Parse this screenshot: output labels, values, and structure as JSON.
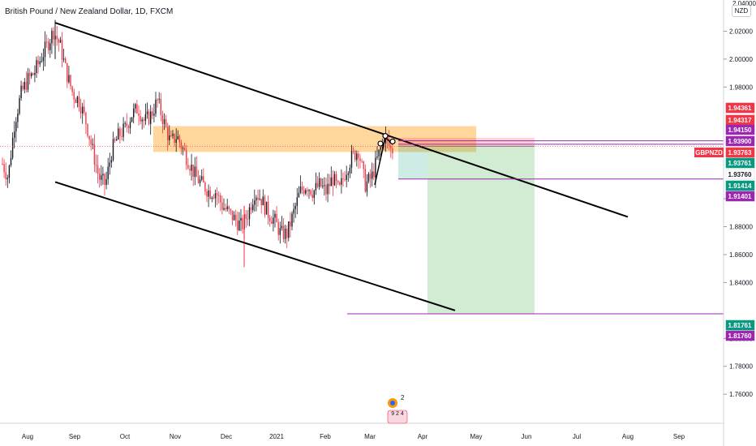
{
  "header": {
    "title": "British Pound / New Zealand Dollar, 1D, FXCM",
    "currency": "NZD",
    "currency_top_value": "2.04000"
  },
  "chart_data": {
    "type": "candlestick",
    "symbol": "GBPNZD",
    "ylim": [
      1.745,
      2.04
    ],
    "y_ticks": [
      "2.02000",
      "2.00000",
      "1.98000",
      "1.90000",
      "1.88000",
      "1.86000",
      "1.84000",
      "1.80000",
      "1.78000",
      "1.76000"
    ],
    "x_ticks": [
      "Aug",
      "Sep",
      "Oct",
      "Nov",
      "Dec",
      "2021",
      "Feb",
      "Mar",
      "Apr",
      "May",
      "Jun",
      "Jul",
      "Aug",
      "Sep"
    ],
    "price_tags": [
      {
        "label": "1.94361",
        "value": 1.94361,
        "color": "#f23645"
      },
      {
        "label": "1.94317",
        "value": 1.94317,
        "color": "#f23645"
      },
      {
        "label": "1.94150",
        "value": 1.9415,
        "color": "#9c27b0"
      },
      {
        "label": "1.93900",
        "value": 1.939,
        "color": "#9c27b0"
      },
      {
        "label": "1.93763",
        "value": 1.93763,
        "color": "#f23645",
        "name": "GBPNZD"
      },
      {
        "label": "1.93761",
        "value": 1.93761,
        "color": "#089981"
      },
      {
        "label": "1.93760",
        "value": 1.9376,
        "color": "#ffffff"
      },
      {
        "label": "1.91414",
        "value": 1.91414,
        "color": "#089981"
      },
      {
        "label": "1.91401",
        "value": 1.91401,
        "color": "#9c27b0"
      },
      {
        "label": "1.81761",
        "value": 1.81761,
        "color": "#089981"
      },
      {
        "label": "1.81760",
        "value": 1.8176,
        "color": "#9c27b0"
      }
    ],
    "zone": {
      "from": 1.9335,
      "to": 1.952,
      "color": "#ffb74d"
    },
    "position": {
      "entry": 1.9376,
      "stop": 1.9436,
      "target": 1.8176
    },
    "levels": [
      1.9415,
      1.939,
      1.9141,
      1.8176
    ],
    "event_badges": [
      "2",
      "9 2 4"
    ]
  }
}
